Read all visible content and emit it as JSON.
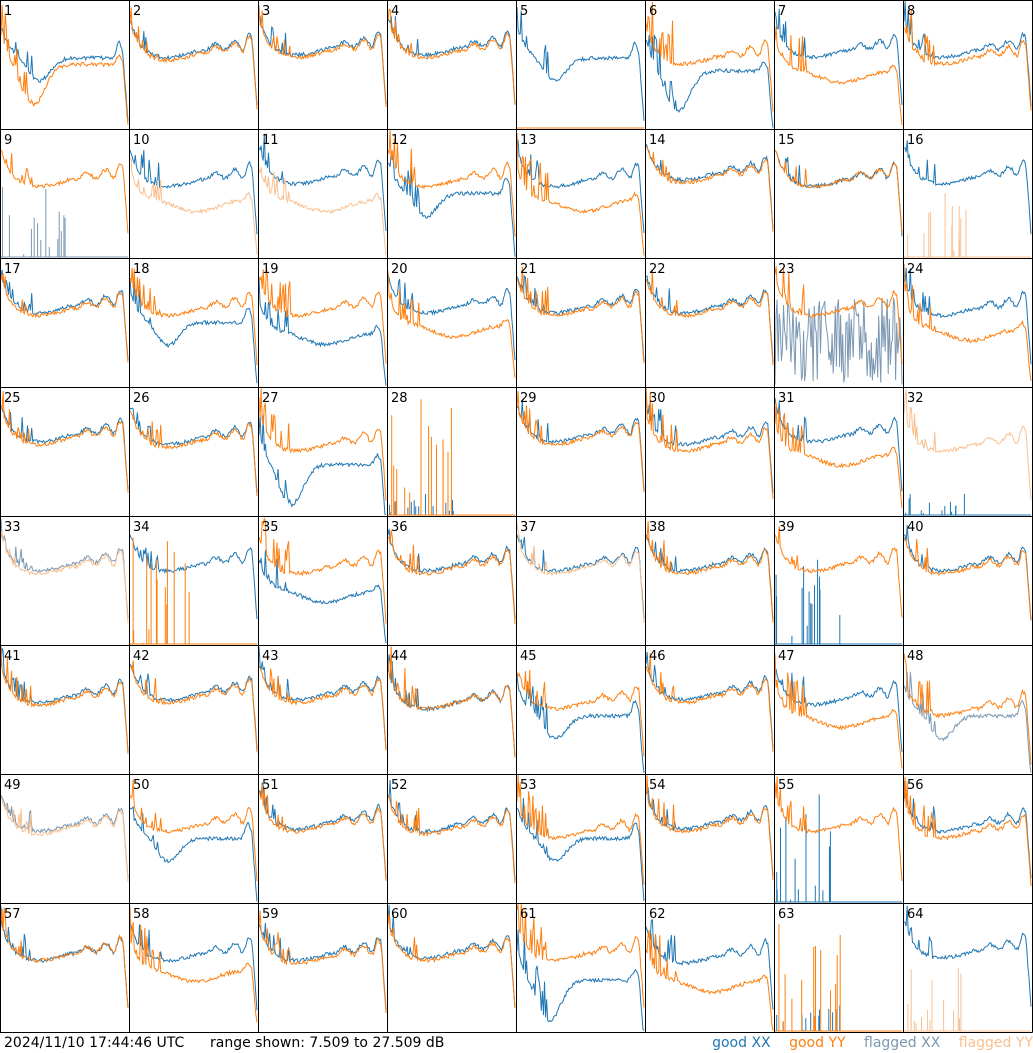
{
  "timestamp": "2024/11/10 17:44:46 UTC",
  "range": {
    "prefix": "range shown:",
    "min": 7.509,
    "max": 27.509,
    "text_min": "7.509",
    "to_word": "to",
    "text_max": "27.509",
    "unit": "dB"
  },
  "legend": {
    "good_word": "good",
    "flagged_word": "flagged",
    "xx": "XX",
    "yy": "YY"
  },
  "colors": {
    "good_xx": "#1f77b4",
    "good_yy": "#ff7f0e",
    "flagged_xx": "#7c98b3",
    "flagged_yy": "#f9c08f",
    "grid": "#000000"
  },
  "chart_data": {
    "type": "line",
    "description": "Per-antenna spectra (8x8 small multiples), y range 7.509 to 27.509 dB",
    "ylim": [
      7.509,
      27.509
    ],
    "panels": [
      {
        "id": "1",
        "xx": "good",
        "yy": "good",
        "xx_shape": "dip",
        "yy_shape": "deepdip",
        "xx_level": 0.55,
        "yy_level": 0.5,
        "xx_spike": 0.7,
        "yy_spike": 0.9
      },
      {
        "id": "2",
        "xx": "good",
        "yy": "good",
        "xx_shape": "normal",
        "yy_shape": "normal",
        "xx_level": 0.6,
        "yy_level": 0.58,
        "xx_spike": 0.5,
        "yy_spike": 0.5
      },
      {
        "id": "3",
        "xx": "good",
        "yy": "good",
        "xx_shape": "normal",
        "yy_shape": "normal",
        "xx_level": 0.62,
        "yy_level": 0.6,
        "xx_spike": 0.5,
        "yy_spike": 0.5
      },
      {
        "id": "4",
        "xx": "good",
        "yy": "good",
        "xx_shape": "normal",
        "yy_shape": "normal",
        "xx_level": 0.62,
        "yy_level": 0.6,
        "xx_spike": 0.5,
        "yy_spike": 0.5
      },
      {
        "id": "5",
        "xx": "good",
        "yy": "good",
        "xx_shape": "dip",
        "yy_shape": "dead",
        "xx_level": 0.55,
        "yy_level": 0,
        "xx_spike": 0.6,
        "yy_spike": 0
      },
      {
        "id": "6",
        "xx": "good",
        "yy": "good",
        "xx_shape": "deepdip",
        "yy_shape": "normal",
        "xx_level": 0.45,
        "yy_level": 0.55,
        "xx_spike": 0.8,
        "yy_spike": 0.9
      },
      {
        "id": "7",
        "xx": "good",
        "yy": "good",
        "xx_shape": "normal",
        "yy_shape": "low",
        "xx_level": 0.6,
        "yy_level": 0.45,
        "xx_spike": 0.6,
        "yy_spike": 0.8
      },
      {
        "id": "8",
        "xx": "good",
        "yy": "good",
        "xx_shape": "normal",
        "yy_shape": "normal",
        "xx_level": 0.6,
        "yy_level": 0.55,
        "xx_spike": 0.6,
        "yy_spike": 0.8
      },
      {
        "id": "9",
        "xx": "flagged",
        "yy": "good",
        "xx_shape": "dead",
        "yy_shape": "normal",
        "xx_level": 0,
        "yy_level": 0.6,
        "xx_spike": 0.6,
        "yy_spike": 0.5
      },
      {
        "id": "10",
        "xx": "good",
        "yy": "flagged",
        "xx_shape": "normal",
        "yy_shape": "low",
        "xx_level": 0.6,
        "yy_level": 0.45,
        "xx_spike": 0.6,
        "yy_spike": 0.6
      },
      {
        "id": "11",
        "xx": "good",
        "yy": "flagged",
        "xx_shape": "normal",
        "yy_shape": "low",
        "xx_level": 0.62,
        "yy_level": 0.45,
        "xx_spike": 0.6,
        "yy_spike": 0.6
      },
      {
        "id": "12",
        "xx": "good",
        "yy": "good",
        "xx_shape": "dip",
        "yy_shape": "normal",
        "xx_level": 0.5,
        "yy_level": 0.6,
        "xx_spike": 0.7,
        "yy_spike": 0.8
      },
      {
        "id": "13",
        "xx": "good",
        "yy": "good",
        "xx_shape": "normal",
        "yy_shape": "low",
        "xx_level": 0.6,
        "yy_level": 0.45,
        "xx_spike": 0.6,
        "yy_spike": 0.9
      },
      {
        "id": "14",
        "xx": "good",
        "yy": "good",
        "xx_shape": "normal",
        "yy_shape": "normal",
        "xx_level": 0.65,
        "yy_level": 0.63,
        "xx_spike": 0.4,
        "yy_spike": 0.4
      },
      {
        "id": "15",
        "xx": "good",
        "yy": "good",
        "xx_shape": "normal",
        "yy_shape": "normal",
        "xx_level": 0.6,
        "yy_level": 0.6,
        "xx_spike": 0.5,
        "yy_spike": 0.5
      },
      {
        "id": "16",
        "xx": "good",
        "yy": "flagged",
        "xx_shape": "normal",
        "yy_shape": "dead",
        "xx_level": 0.62,
        "yy_level": 0,
        "xx_spike": 0.5,
        "yy_spike": 0.5
      },
      {
        "id": "17",
        "xx": "good",
        "yy": "good",
        "xx_shape": "normal",
        "yy_shape": "normal",
        "xx_level": 0.62,
        "yy_level": 0.6,
        "xx_spike": 0.5,
        "yy_spike": 0.5
      },
      {
        "id": "18",
        "xx": "good",
        "yy": "good",
        "xx_shape": "dip",
        "yy_shape": "normal",
        "xx_level": 0.5,
        "yy_level": 0.6,
        "xx_spike": 0.6,
        "yy_spike": 0.6
      },
      {
        "id": "19",
        "xx": "good",
        "yy": "good",
        "xx_shape": "low",
        "yy_shape": "normal",
        "xx_level": 0.42,
        "yy_level": 0.6,
        "xx_spike": 0.7,
        "yy_spike": 0.8
      },
      {
        "id": "20",
        "xx": "good",
        "yy": "good",
        "xx_shape": "normal",
        "yy_shape": "low",
        "xx_level": 0.62,
        "yy_level": 0.48,
        "xx_spike": 0.6,
        "yy_spike": 0.8
      },
      {
        "id": "21",
        "xx": "good",
        "yy": "good",
        "xx_shape": "normal",
        "yy_shape": "normal",
        "xx_level": 0.62,
        "yy_level": 0.6,
        "xx_spike": 0.5,
        "yy_spike": 0.7
      },
      {
        "id": "22",
        "xx": "good",
        "yy": "good",
        "xx_shape": "normal",
        "yy_shape": "normal",
        "xx_level": 0.62,
        "yy_level": 0.6,
        "xx_spike": 0.5,
        "yy_spike": 0.6
      },
      {
        "id": "23",
        "xx": "flagged",
        "yy": "good",
        "xx_shape": "noisy",
        "yy_shape": "normal",
        "xx_level": 0.35,
        "yy_level": 0.6,
        "xx_spike": 0.7,
        "yy_spike": 0.8
      },
      {
        "id": "24",
        "xx": "good",
        "yy": "good",
        "xx_shape": "normal",
        "yy_shape": "low",
        "xx_level": 0.6,
        "yy_level": 0.45,
        "xx_spike": 0.6,
        "yy_spike": 0.8
      },
      {
        "id": "25",
        "xx": "good",
        "yy": "good",
        "xx_shape": "normal",
        "yy_shape": "normal",
        "xx_level": 0.62,
        "yy_level": 0.6,
        "xx_spike": 0.5,
        "yy_spike": 0.6
      },
      {
        "id": "26",
        "xx": "good",
        "yy": "good",
        "xx_shape": "normal",
        "yy_shape": "normal",
        "xx_level": 0.6,
        "yy_level": 0.58,
        "xx_spike": 0.6,
        "yy_spike": 0.6
      },
      {
        "id": "27",
        "xx": "good",
        "yy": "good",
        "xx_shape": "deepdip",
        "yy_shape": "normal",
        "xx_level": 0.4,
        "yy_level": 0.55,
        "xx_spike": 0.7,
        "yy_spike": 0.9
      },
      {
        "id": "28",
        "xx": "good",
        "yy": "good",
        "xx_shape": "dead",
        "yy_shape": "dead",
        "xx_level": 0,
        "yy_level": 0,
        "xx_spike": 0.2,
        "yy_spike": 0.9
      },
      {
        "id": "29",
        "xx": "good",
        "yy": "good",
        "xx_shape": "normal",
        "yy_shape": "normal",
        "xx_level": 0.62,
        "yy_level": 0.6,
        "xx_spike": 0.5,
        "yy_spike": 0.6
      },
      {
        "id": "30",
        "xx": "good",
        "yy": "good",
        "xx_shape": "normal",
        "yy_shape": "normal",
        "xx_level": 0.6,
        "yy_level": 0.55,
        "xx_spike": 0.6,
        "yy_spike": 0.8
      },
      {
        "id": "31",
        "xx": "good",
        "yy": "good",
        "xx_shape": "normal",
        "yy_shape": "low",
        "xx_level": 0.62,
        "yy_level": 0.48,
        "xx_spike": 0.6,
        "yy_spike": 0.8
      },
      {
        "id": "32",
        "xx": "good",
        "yy": "flagged",
        "xx_shape": "dead",
        "yy_shape": "normal",
        "xx_level": 0,
        "yy_level": 0.55,
        "xx_spike": 0.2,
        "yy_spike": 0.8
      },
      {
        "id": "33",
        "xx": "flagged",
        "yy": "flagged",
        "xx_shape": "normal",
        "yy_shape": "normal",
        "xx_level": 0.62,
        "yy_level": 0.6,
        "xx_spike": 0.4,
        "yy_spike": 0.4
      },
      {
        "id": "34",
        "xx": "good",
        "yy": "good",
        "xx_shape": "normal",
        "yy_shape": "dead",
        "xx_level": 0.62,
        "yy_level": 0,
        "xx_spike": 0.5,
        "yy_spike": 0.9
      },
      {
        "id": "35",
        "xx": "good",
        "yy": "good",
        "xx_shape": "low",
        "yy_shape": "normal",
        "xx_level": 0.42,
        "yy_level": 0.6,
        "xx_spike": 0.7,
        "yy_spike": 0.8
      },
      {
        "id": "36",
        "xx": "good",
        "yy": "good",
        "xx_shape": "normal",
        "yy_shape": "normal",
        "xx_level": 0.62,
        "yy_level": 0.6,
        "xx_spike": 0.5,
        "yy_spike": 0.6
      },
      {
        "id": "37",
        "xx": "good",
        "yy": "flagged",
        "xx_shape": "normal",
        "yy_shape": "normal",
        "xx_level": 0.62,
        "yy_level": 0.6,
        "xx_spike": 0.5,
        "yy_spike": 0.5
      },
      {
        "id": "38",
        "xx": "good",
        "yy": "good",
        "xx_shape": "normal",
        "yy_shape": "normal",
        "xx_level": 0.62,
        "yy_level": 0.6,
        "xx_spike": 0.5,
        "yy_spike": 0.6
      },
      {
        "id": "39",
        "xx": "good",
        "yy": "good",
        "xx_shape": "dead",
        "yy_shape": "normal",
        "xx_level": 0,
        "yy_level": 0.62,
        "xx_spike": 0.7,
        "yy_spike": 0.5
      },
      {
        "id": "40",
        "xx": "good",
        "yy": "good",
        "xx_shape": "normal",
        "yy_shape": "normal",
        "xx_level": 0.62,
        "yy_level": 0.6,
        "xx_spike": 0.5,
        "yy_spike": 0.6
      },
      {
        "id": "41",
        "xx": "good",
        "yy": "good",
        "xx_shape": "normal",
        "yy_shape": "normal",
        "xx_level": 0.6,
        "yy_level": 0.58,
        "xx_spike": 0.5,
        "yy_spike": 0.6
      },
      {
        "id": "42",
        "xx": "good",
        "yy": "good",
        "xx_shape": "normal",
        "yy_shape": "normal",
        "xx_level": 0.62,
        "yy_level": 0.6,
        "xx_spike": 0.5,
        "yy_spike": 0.6
      },
      {
        "id": "43",
        "xx": "good",
        "yy": "good",
        "xx_shape": "normal",
        "yy_shape": "normal",
        "xx_level": 0.62,
        "yy_level": 0.6,
        "xx_spike": 0.5,
        "yy_spike": 0.6
      },
      {
        "id": "44",
        "xx": "good",
        "yy": "good",
        "xx_shape": "normal",
        "yy_shape": "normal",
        "xx_level": 0.55,
        "yy_level": 0.55,
        "xx_spike": 0.5,
        "yy_spike": 0.8
      },
      {
        "id": "45",
        "xx": "good",
        "yy": "good",
        "xx_shape": "dip",
        "yy_shape": "normal",
        "xx_level": 0.45,
        "yy_level": 0.55,
        "xx_spike": 0.7,
        "yy_spike": 0.7
      },
      {
        "id": "46",
        "xx": "good",
        "yy": "good",
        "xx_shape": "normal",
        "yy_shape": "normal",
        "xx_level": 0.62,
        "yy_level": 0.6,
        "xx_spike": 0.5,
        "yy_spike": 0.6
      },
      {
        "id": "47",
        "xx": "good",
        "yy": "good",
        "xx_shape": "normal",
        "yy_shape": "low",
        "xx_level": 0.58,
        "yy_level": 0.45,
        "xx_spike": 0.6,
        "yy_spike": 0.8
      },
      {
        "id": "48",
        "xx": "flagged",
        "yy": "good",
        "xx_shape": "dip",
        "yy_shape": "normal",
        "xx_level": 0.45,
        "yy_level": 0.5,
        "xx_spike": 0.6,
        "yy_spike": 0.8
      },
      {
        "id": "49",
        "xx": "flagged",
        "yy": "flagged",
        "xx_shape": "normal",
        "yy_shape": "normal",
        "xx_level": 0.6,
        "yy_level": 0.58,
        "xx_spike": 0.5,
        "yy_spike": 0.5
      },
      {
        "id": "50",
        "xx": "good",
        "yy": "good",
        "xx_shape": "dip",
        "yy_shape": "normal",
        "xx_level": 0.5,
        "yy_level": 0.6,
        "xx_spike": 0.6,
        "yy_spike": 0.6
      },
      {
        "id": "51",
        "xx": "good",
        "yy": "good",
        "xx_shape": "normal",
        "yy_shape": "normal",
        "xx_level": 0.62,
        "yy_level": 0.6,
        "xx_spike": 0.5,
        "yy_spike": 0.6
      },
      {
        "id": "52",
        "xx": "good",
        "yy": "good",
        "xx_shape": "normal",
        "yy_shape": "normal",
        "xx_level": 0.6,
        "yy_level": 0.58,
        "xx_spike": 0.5,
        "yy_spike": 0.7
      },
      {
        "id": "53",
        "xx": "good",
        "yy": "good",
        "xx_shape": "dip",
        "yy_shape": "normal",
        "xx_level": 0.5,
        "yy_level": 0.55,
        "xx_spike": 0.6,
        "yy_spike": 0.8
      },
      {
        "id": "54",
        "xx": "good",
        "yy": "good",
        "xx_shape": "normal",
        "yy_shape": "normal",
        "xx_level": 0.62,
        "yy_level": 0.6,
        "xx_spike": 0.5,
        "yy_spike": 0.6
      },
      {
        "id": "55",
        "xx": "good",
        "yy": "good",
        "xx_shape": "dead",
        "yy_shape": "normal",
        "xx_level": 0,
        "yy_level": 0.6,
        "xx_spike": 0.9,
        "yy_spike": 0.6
      },
      {
        "id": "56",
        "xx": "good",
        "yy": "good",
        "xx_shape": "normal",
        "yy_shape": "normal",
        "xx_level": 0.6,
        "yy_level": 0.55,
        "xx_spike": 0.6,
        "yy_spike": 0.8
      },
      {
        "id": "57",
        "xx": "good",
        "yy": "good",
        "xx_shape": "normal",
        "yy_shape": "normal",
        "xx_level": 0.6,
        "yy_level": 0.6,
        "xx_spike": 0.5,
        "yy_spike": 0.6
      },
      {
        "id": "58",
        "xx": "good",
        "yy": "good",
        "xx_shape": "normal",
        "yy_shape": "low",
        "xx_level": 0.6,
        "yy_level": 0.48,
        "xx_spike": 0.6,
        "yy_spike": 0.8
      },
      {
        "id": "59",
        "xx": "good",
        "yy": "good",
        "xx_shape": "normal",
        "yy_shape": "normal",
        "xx_level": 0.6,
        "yy_level": 0.58,
        "xx_spike": 0.5,
        "yy_spike": 0.7
      },
      {
        "id": "60",
        "xx": "good",
        "yy": "good",
        "xx_shape": "normal",
        "yy_shape": "normal",
        "xx_level": 0.62,
        "yy_level": 0.6,
        "xx_spike": 0.5,
        "yy_spike": 0.6
      },
      {
        "id": "61",
        "xx": "good",
        "yy": "good",
        "xx_shape": "deepdip",
        "yy_shape": "normal",
        "xx_level": 0.4,
        "yy_level": 0.6,
        "xx_spike": 0.9,
        "yy_spike": 0.8
      },
      {
        "id": "62",
        "xx": "good",
        "yy": "good",
        "xx_shape": "normal",
        "yy_shape": "low",
        "xx_level": 0.58,
        "yy_level": 0.4,
        "xx_spike": 0.6,
        "yy_spike": 0.9
      },
      {
        "id": "63",
        "xx": "good",
        "yy": "good",
        "xx_shape": "dead",
        "yy_shape": "dead",
        "xx_level": 0,
        "yy_level": 0,
        "xx_spike": 0.2,
        "yy_spike": 0.9
      },
      {
        "id": "64",
        "xx": "good",
        "yy": "flagged",
        "xx_shape": "normal",
        "yy_shape": "dead",
        "xx_level": 0.62,
        "yy_level": 0,
        "xx_spike": 0.6,
        "yy_spike": 0.5
      }
    ]
  }
}
